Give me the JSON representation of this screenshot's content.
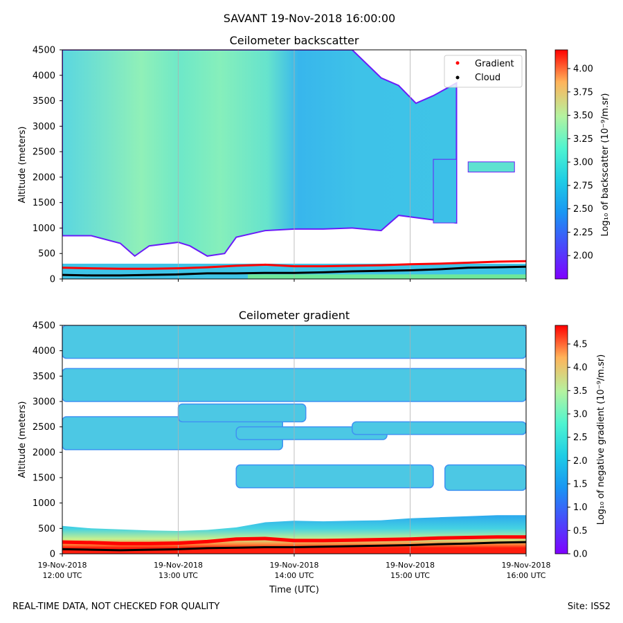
{
  "figure_title": "SAVANT 19-Nov-2018 16:00:00",
  "footer_left": "REAL-TIME DATA, NOT CHECKED FOR QUALITY",
  "footer_right": "Site: ISS2",
  "xlabel": "Time (UTC)",
  "x_ticks": [
    [
      "19-Nov-2018",
      "12:00 UTC"
    ],
    [
      "19-Nov-2018",
      "13:00 UTC"
    ],
    [
      "19-Nov-2018",
      "14:00 UTC"
    ],
    [
      "19-Nov-2018",
      "15:00 UTC"
    ],
    [
      "19-Nov-2018",
      "16:00 UTC"
    ]
  ],
  "colors": {
    "white": "#ffffff",
    "grid": "#b0b0b0",
    "gradient_marker": "#ff0000",
    "cloud_marker": "#000000"
  },
  "colormap": "rainbow",
  "chart_data": [
    {
      "type": "heatmap",
      "title": "Ceilometer backscatter",
      "ylabel": "Altitude (meters)",
      "xlim": [
        "12:00",
        "16:00"
      ],
      "ylim": [
        0,
        4500
      ],
      "y_ticks": [
        0,
        500,
        1000,
        1500,
        2000,
        2500,
        3000,
        3500,
        4000,
        4500
      ],
      "colorbar": {
        "label": "Log₁₀ of backscatter (10⁻⁹/m.sr)",
        "range": [
          1.75,
          4.2
        ],
        "ticks": [
          "2.00",
          "2.25",
          "2.50",
          "2.75",
          "3.00",
          "3.25",
          "3.50",
          "3.75",
          "4.00"
        ],
        "tick_values": [
          2.0,
          2.25,
          2.5,
          2.75,
          3.0,
          3.25,
          3.5,
          3.75,
          4.0
        ]
      },
      "grid": "vertical",
      "legend": {
        "placement": "top-right",
        "entries": [
          "Gradient",
          "Cloud"
        ]
      },
      "aerosol_layer_top_m": [
        [
          0,
          4500
        ],
        [
          0.25,
          4500
        ],
        [
          0.5,
          4500
        ],
        [
          1.0,
          4500
        ],
        [
          1.5,
          4500
        ],
        [
          1.75,
          4500
        ],
        [
          2.0,
          4500
        ],
        [
          2.5,
          4500
        ],
        [
          2.75,
          3950
        ],
        [
          2.9,
          3800
        ],
        [
          3.05,
          3450
        ],
        [
          3.2,
          3600
        ],
        [
          3.4,
          3850
        ]
      ],
      "aerosol_layer_base_m": [
        [
          0,
          850
        ],
        [
          0.25,
          850
        ],
        [
          0.5,
          700
        ],
        [
          0.625,
          450
        ],
        [
          0.75,
          650
        ],
        [
          1.0,
          720
        ],
        [
          1.1,
          650
        ],
        [
          1.25,
          450
        ],
        [
          1.4,
          500
        ],
        [
          1.5,
          820
        ],
        [
          1.75,
          950
        ],
        [
          2.0,
          980
        ],
        [
          2.25,
          980
        ],
        [
          2.5,
          1000
        ],
        [
          2.75,
          950
        ],
        [
          2.9,
          1250
        ]
      ],
      "clear_air_from_hour": 3.45,
      "cloud_base_m": [
        [
          0,
          80
        ],
        [
          0.25,
          70
        ],
        [
          0.5,
          70
        ],
        [
          0.75,
          80
        ],
        [
          1.0,
          90
        ],
        [
          1.25,
          110
        ],
        [
          1.5,
          110
        ],
        [
          1.75,
          120
        ],
        [
          2.0,
          120
        ],
        [
          2.25,
          130
        ],
        [
          2.5,
          150
        ],
        [
          2.75,
          160
        ],
        [
          3.0,
          170
        ],
        [
          3.25,
          190
        ],
        [
          3.5,
          220
        ],
        [
          3.75,
          230
        ],
        [
          4.0,
          240
        ]
      ],
      "gradient_m": [
        [
          0,
          220
        ],
        [
          0.25,
          210
        ],
        [
          0.5,
          200
        ],
        [
          0.75,
          200
        ],
        [
          1.0,
          210
        ],
        [
          1.25,
          230
        ],
        [
          1.5,
          260
        ],
        [
          1.75,
          280
        ],
        [
          2.0,
          250
        ],
        [
          2.25,
          250
        ],
        [
          2.5,
          260
        ],
        [
          2.75,
          270
        ],
        [
          3.0,
          290
        ],
        [
          3.25,
          300
        ],
        [
          3.5,
          320
        ],
        [
          3.75,
          340
        ],
        [
          4.0,
          350
        ]
      ]
    },
    {
      "type": "heatmap",
      "title": "Ceilometer gradient",
      "ylabel": "Altitude (meters)",
      "xlim": [
        "12:00",
        "16:00"
      ],
      "ylim": [
        0,
        4500
      ],
      "y_ticks": [
        0,
        500,
        1000,
        1500,
        2000,
        2500,
        3000,
        3500,
        4000,
        4500
      ],
      "colorbar": {
        "label": "Log₁₀ of negative gradient (10⁻⁹/m.sr)",
        "range": [
          0.0,
          4.9
        ],
        "ticks": [
          "0.0",
          "0.5",
          "1.0",
          "1.5",
          "2.0",
          "2.5",
          "3.0",
          "3.5",
          "4.0",
          "4.5"
        ],
        "tick_values": [
          0,
          0.5,
          1.0,
          1.5,
          2.0,
          2.5,
          3.0,
          3.5,
          4.0,
          4.5
        ]
      },
      "grid": "vertical",
      "boundary_layer_top_m": [
        [
          0,
          550
        ],
        [
          0.25,
          500
        ],
        [
          0.5,
          480
        ],
        [
          0.75,
          460
        ],
        [
          1.0,
          450
        ],
        [
          1.25,
          470
        ],
        [
          1.5,
          520
        ],
        [
          1.75,
          620
        ],
        [
          2.0,
          650
        ],
        [
          2.25,
          640
        ],
        [
          2.5,
          650
        ],
        [
          2.75,
          660
        ],
        [
          3.0,
          700
        ],
        [
          3.25,
          720
        ],
        [
          3.5,
          740
        ],
        [
          3.75,
          760
        ],
        [
          4.0,
          760
        ]
      ],
      "cloud_base_m": [
        [
          0,
          90
        ],
        [
          0.25,
          80
        ],
        [
          0.5,
          70
        ],
        [
          0.75,
          80
        ],
        [
          1.0,
          90
        ],
        [
          1.25,
          110
        ],
        [
          1.5,
          120
        ],
        [
          1.75,
          130
        ],
        [
          2.0,
          130
        ],
        [
          2.25,
          140
        ],
        [
          2.5,
          150
        ],
        [
          2.75,
          160
        ],
        [
          3.0,
          170
        ],
        [
          3.25,
          190
        ],
        [
          3.5,
          200
        ],
        [
          3.75,
          220
        ],
        [
          4.0,
          230
        ]
      ],
      "gradient_m": [
        [
          0,
          230
        ],
        [
          0.25,
          220
        ],
        [
          0.5,
          200
        ],
        [
          0.75,
          200
        ],
        [
          1.0,
          210
        ],
        [
          1.25,
          240
        ],
        [
          1.5,
          290
        ],
        [
          1.75,
          300
        ],
        [
          2.0,
          260
        ],
        [
          2.25,
          260
        ],
        [
          2.5,
          270
        ],
        [
          2.75,
          280
        ],
        [
          3.0,
          290
        ],
        [
          3.25,
          310
        ],
        [
          3.5,
          320
        ],
        [
          3.75,
          330
        ],
        [
          4.0,
          330
        ]
      ]
    }
  ]
}
